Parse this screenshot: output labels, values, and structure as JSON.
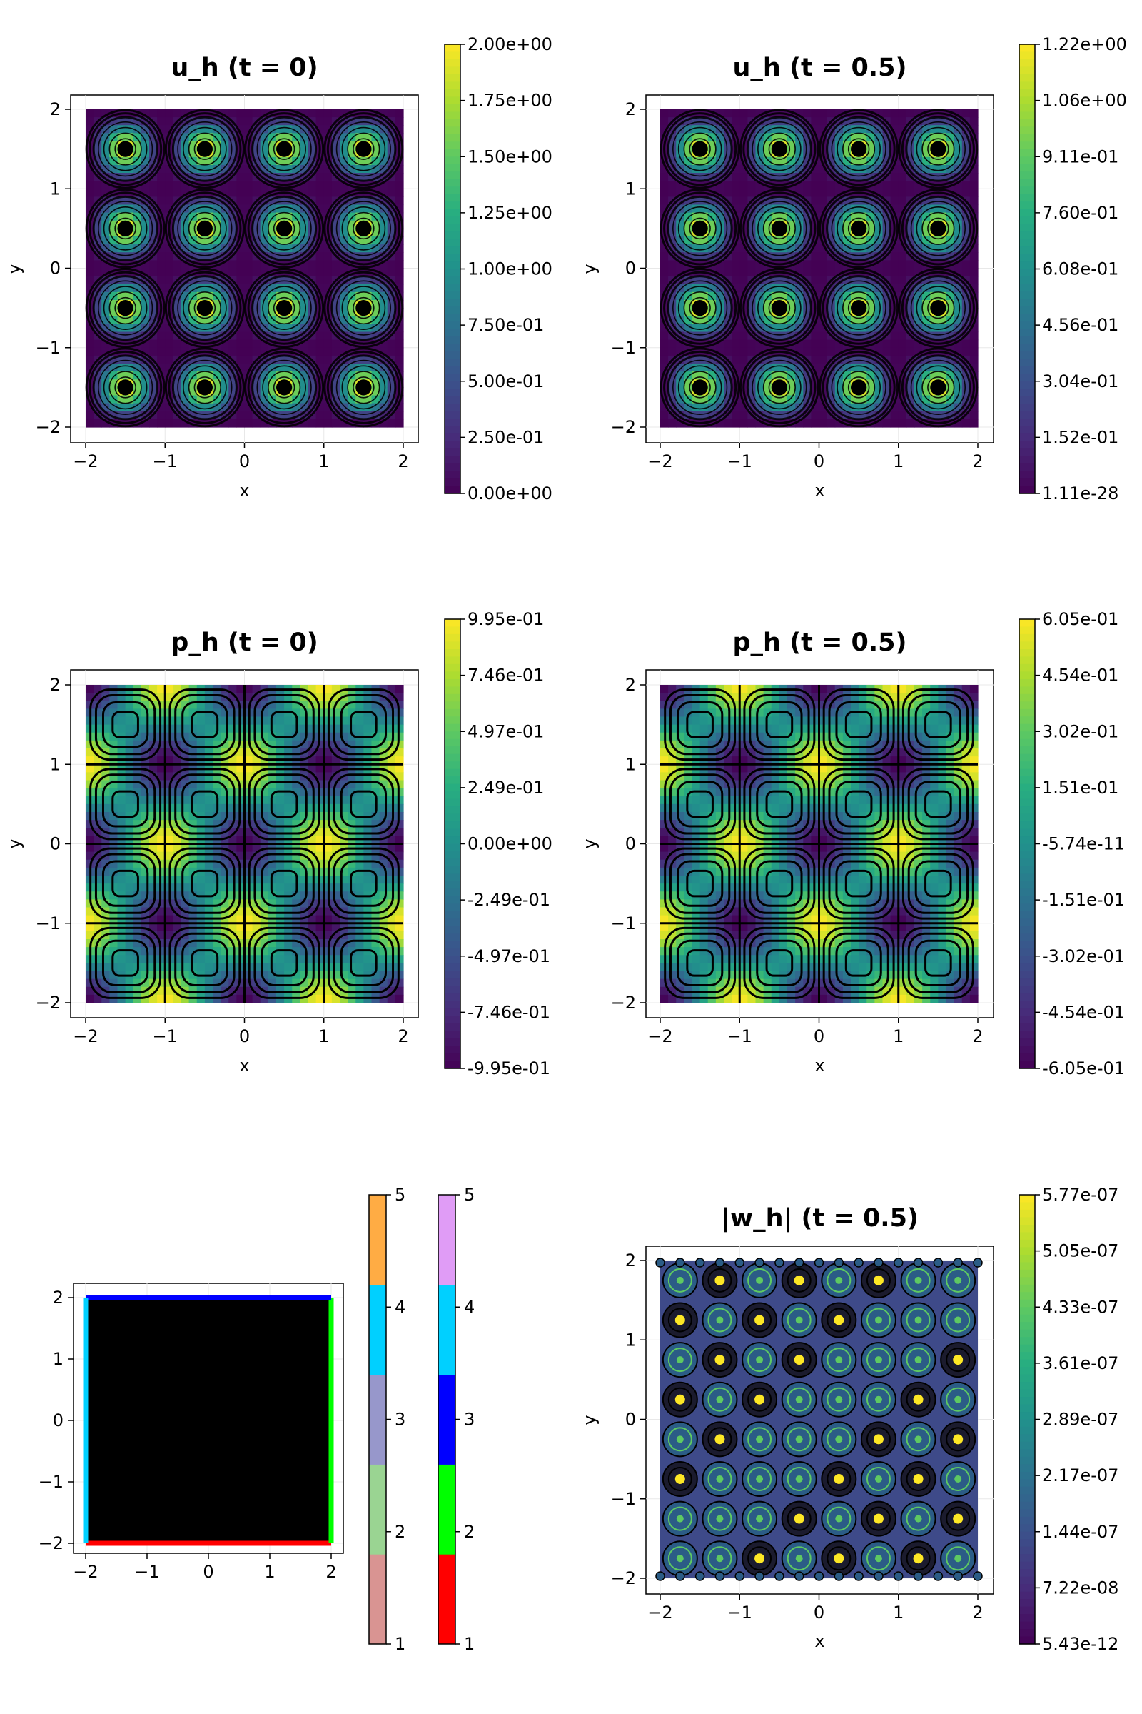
{
  "colors": {
    "viridis": [
      "#440154",
      "#472c7a",
      "#3b528b",
      "#2c728e",
      "#21918c",
      "#28ae80",
      "#5ec962",
      "#addc30",
      "#fde725"
    ],
    "boundary": [
      "#ff0000",
      "#00ff00",
      "#0000ff",
      "#00d0ff",
      "#e09cf6"
    ],
    "cat_colorbar": [
      "#d99492",
      "#9ad492",
      "#9797cb",
      "#00d0ff",
      "#ffac44"
    ],
    "contour": "#000000"
  },
  "chart_data": [
    {
      "id": "uh0",
      "type": "heatmap",
      "title": "u_h (t = 0)",
      "xlabel": "x",
      "ylabel": "y",
      "xlim": [
        -2,
        2
      ],
      "ylim": [
        -2,
        2
      ],
      "xticks": [
        "−2",
        "−1",
        "0",
        "1",
        "2"
      ],
      "yticks": [
        "−2",
        "−1",
        "0",
        "1",
        "2"
      ],
      "field": "u",
      "colorbar": {
        "colormap": "viridis",
        "range": [
          0,
          2
        ],
        "ticks": [
          "0.00e+00",
          "2.50e-01",
          "5.00e-01",
          "7.50e-01",
          "1.00e+00",
          "1.25e+00",
          "1.50e+00",
          "1.75e+00",
          "2.00e+00"
        ]
      }
    },
    {
      "id": "uh05",
      "type": "heatmap",
      "title": "u_h (t = 0.5)",
      "xlabel": "x",
      "ylabel": "y",
      "xlim": [
        -2,
        2
      ],
      "ylim": [
        -2,
        2
      ],
      "xticks": [
        "−2",
        "−1",
        "0",
        "1",
        "2"
      ],
      "yticks": [
        "−2",
        "−1",
        "0",
        "1",
        "2"
      ],
      "field": "u",
      "colorbar": {
        "colormap": "viridis",
        "range": [
          1.11e-28,
          1.22
        ],
        "ticks": [
          "1.11e-28",
          "1.52e-01",
          "3.04e-01",
          "4.56e-01",
          "6.08e-01",
          "7.60e-01",
          "9.11e-01",
          "1.06e+00",
          "1.22e+00"
        ]
      }
    },
    {
      "id": "ph0",
      "type": "heatmap",
      "title": "p_h (t = 0)",
      "xlabel": "x",
      "ylabel": "y",
      "xlim": [
        -2,
        2
      ],
      "ylim": [
        -2,
        2
      ],
      "xticks": [
        "−2",
        "−1",
        "0",
        "1",
        "2"
      ],
      "yticks": [
        "−2",
        "−1",
        "0",
        "1",
        "2"
      ],
      "field": "p",
      "colorbar": {
        "colormap": "viridis",
        "range": [
          -0.995,
          0.995
        ],
        "ticks": [
          "-9.95e-01",
          "-7.46e-01",
          "-4.97e-01",
          "-2.49e-01",
          "0.00e+00",
          "2.49e-01",
          "4.97e-01",
          "7.46e-01",
          "9.95e-01"
        ]
      }
    },
    {
      "id": "ph05",
      "type": "heatmap",
      "title": "p_h (t = 0.5)",
      "xlabel": "x",
      "ylabel": "y",
      "xlim": [
        -2,
        2
      ],
      "ylim": [
        -2,
        2
      ],
      "xticks": [
        "−2",
        "−1",
        "0",
        "1",
        "2"
      ],
      "yticks": [
        "−2",
        "−1",
        "0",
        "1",
        "2"
      ],
      "field": "p",
      "colorbar": {
        "colormap": "viridis",
        "range": [
          -0.605,
          0.605
        ],
        "ticks": [
          "-6.05e-01",
          "-4.54e-01",
          "-3.02e-01",
          "-1.51e-01",
          "-5.74e-11",
          "1.51e-01",
          "3.02e-01",
          "4.54e-01",
          "6.05e-01"
        ]
      }
    },
    {
      "id": "mesh",
      "type": "heatmap",
      "title": "",
      "xlabel": "",
      "ylabel": "",
      "xlim": [
        -2,
        2
      ],
      "ylim": [
        -2,
        2
      ],
      "xticks": [
        "−2",
        "−1",
        "0",
        "1",
        "2"
      ],
      "yticks": [
        "−2",
        "−1",
        "0",
        "1",
        "2"
      ],
      "field": "mesh",
      "boundary_tags": {
        "bottom": 1,
        "right": 2,
        "top": 3,
        "left": 4
      },
      "colorbars": [
        {
          "levels": [
            1,
            2,
            3,
            4,
            5
          ],
          "ticks": [
            "1",
            "2",
            "3",
            "4",
            "5"
          ]
        },
        {
          "levels": [
            1,
            2,
            3,
            4,
            5
          ],
          "ticks": [
            "1",
            "2",
            "3",
            "4",
            "5"
          ]
        }
      ]
    },
    {
      "id": "wh05",
      "type": "heatmap",
      "title": "|w_h| (t = 0.5)",
      "xlabel": "x",
      "ylabel": "y",
      "xlim": [
        -2,
        2
      ],
      "ylim": [
        -2,
        2
      ],
      "xticks": [
        "−2",
        "−1",
        "0",
        "1",
        "2"
      ],
      "yticks": [
        "−2",
        "−1",
        "0",
        "1",
        "2"
      ],
      "field": "w",
      "colorbar": {
        "colormap": "viridis",
        "range": [
          5.43e-12,
          5.77e-07
        ],
        "ticks": [
          "5.43e-12",
          "7.22e-08",
          "1.44e-07",
          "2.17e-07",
          "2.89e-07",
          "3.61e-07",
          "4.33e-07",
          "5.05e-07",
          "5.77e-07"
        ]
      }
    }
  ]
}
